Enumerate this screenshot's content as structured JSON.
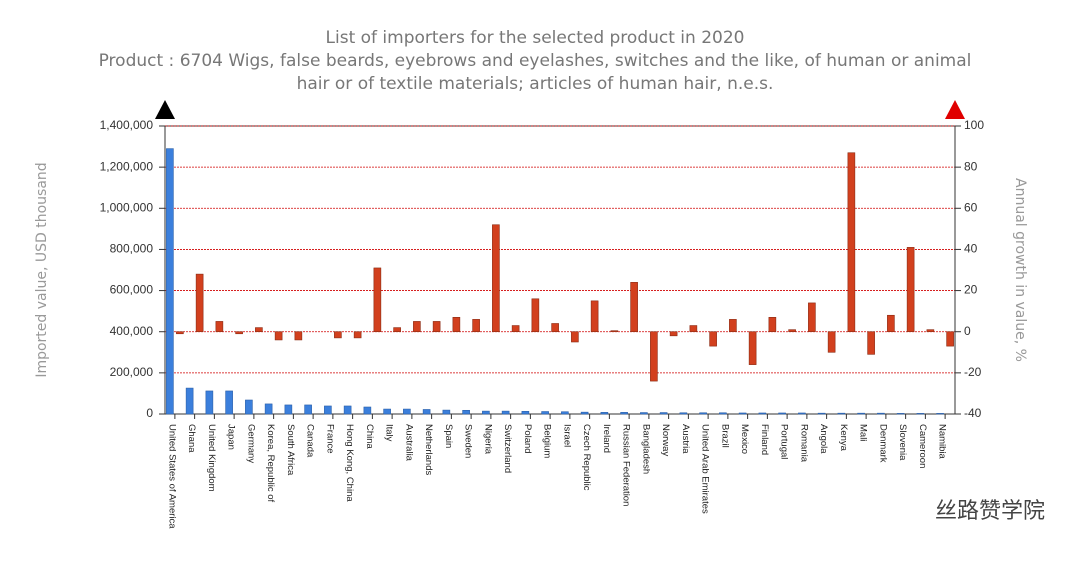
{
  "chart_data": {
    "type": "bar",
    "title": "List of importers for the selected product in 2020",
    "subtitle": [
      "Product : 6704 Wigs, false beards, eyebrows and eyelashes, switches and the like, of human or animal",
      "hair or of textile materials; articles of human hair, n.e.s."
    ],
    "y_label": "Imported value, USD thousand",
    "y2_label": "Annual growth in value, %",
    "watermark": "丝路赞学院",
    "categories": [
      "United States of America",
      "Ghana",
      "United Kingdom",
      "Japan",
      "Germany",
      "Korea, Republic of",
      "South Africa",
      "Canada",
      "France",
      "Hong Kong, China",
      "China",
      "Italy",
      "Australia",
      "Netherlands",
      "Spain",
      "Sweden",
      "Nigeria",
      "Switzerland",
      "Poland",
      "Belgium",
      "Israel",
      "Czech Republic",
      "Ireland",
      "Russian Federation",
      "Bangladesh",
      "Norway",
      "Austria",
      "United Arab Emirates",
      "Brazil",
      "Mexico",
      "Finland",
      "Portugal",
      "Romania",
      "Angola",
      "Kenya",
      "Mali",
      "Denmark",
      "Slovenia",
      "Cameroon",
      "Namibia"
    ],
    "series": [
      {
        "color": "#3b7fdc",
        "axis": "y",
        "values": [
          1290000,
          126000,
          112000,
          112000,
          68000,
          49000,
          44000,
          44000,
          39000,
          39000,
          34000,
          24000,
          24000,
          22000,
          19000,
          18000,
          14000,
          14000,
          13000,
          12000,
          11000,
          9000,
          8000,
          8000,
          7000,
          7000,
          6000,
          6000,
          6000,
          5000,
          5000,
          5000,
          5000,
          4000,
          4000,
          4000,
          4000,
          3000,
          3000,
          3000
        ]
      },
      {
        "color": "#d2401e",
        "axis": "y2",
        "values": [
          -1,
          28,
          5,
          -1,
          2,
          -4,
          -4,
          null,
          -3,
          -3,
          31,
          2,
          5,
          5,
          7,
          6,
          52,
          3,
          16,
          4,
          -5,
          15,
          0.5,
          24,
          -24,
          -2,
          3,
          -7,
          6,
          -16,
          7,
          1,
          14,
          -10,
          87,
          -11,
          8,
          41,
          1,
          -7
        ]
      }
    ],
    "ylim": [
      0,
      1400000
    ],
    "yticks": [
      0,
      {
        "value": 200000,
        "label": "200,000"
      },
      {
        "value": 400000,
        "label": "400,000"
      },
      {
        "value": 600000,
        "label": "600,000"
      },
      {
        "value": 800000,
        "label": "800,000"
      },
      {
        "value": 1000000,
        "label": "1,000,000"
      },
      {
        "value": 1200000,
        "label": "1,200,000"
      },
      {
        "value": 1400000,
        "label": "1,400,000"
      }
    ],
    "y2lim": [
      -40,
      100
    ],
    "y2ticks": [
      -40,
      -20,
      0,
      20,
      40,
      60,
      80,
      100
    ],
    "grid": true,
    "grid_color": "#d00000"
  }
}
